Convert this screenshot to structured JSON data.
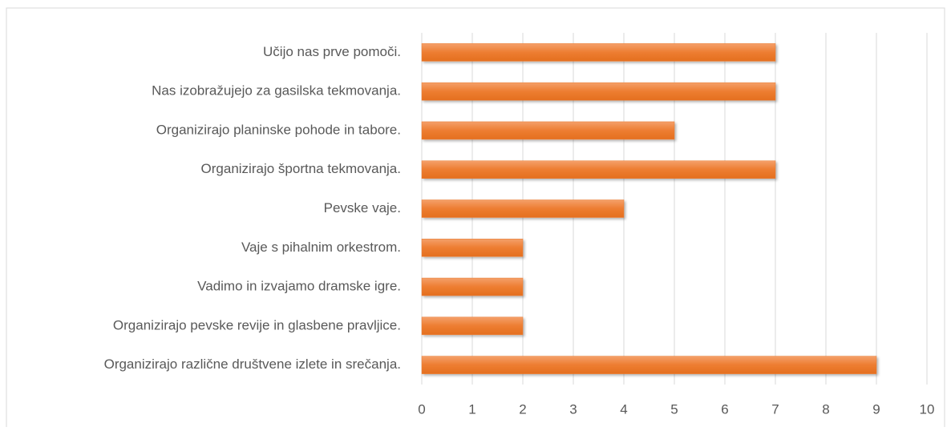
{
  "chart_data": {
    "type": "bar",
    "orientation": "horizontal",
    "categories": [
      "Učijo nas prve pomoči.",
      "Nas izobražujejo za gasilska tekmovanja.",
      "Organizirajo planinske pohode in tabore.",
      "Organizirajo športna tekmovanja.",
      "Pevske vaje.",
      "Vaje s pihalnim orkestrom.",
      "Vadimo in izvajamo dramske igre.",
      "Organizirajo pevske revije in glasbene pravljice.",
      "Organizirajo različne društvene izlete in srečanja."
    ],
    "values": [
      7,
      7,
      5,
      7,
      4,
      2,
      2,
      2,
      9
    ],
    "color": "#ed7d31",
    "xlim": [
      0,
      10
    ],
    "xticks": [
      0,
      1,
      2,
      3,
      4,
      5,
      6,
      7,
      8,
      9,
      10
    ],
    "grid": true
  }
}
